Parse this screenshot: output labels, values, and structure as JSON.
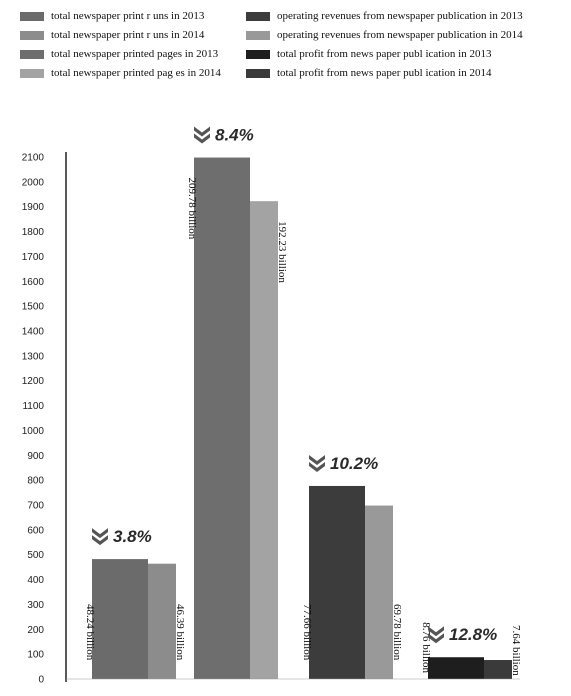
{
  "chart_data": {
    "type": "bar",
    "title": "",
    "xlabel": "",
    "ylabel": "",
    "ylim": [
      0,
      2100
    ],
    "yticks": [
      0,
      100,
      200,
      300,
      400,
      500,
      600,
      700,
      800,
      900,
      1000,
      1100,
      1200,
      1300,
      1400,
      1500,
      1600,
      1700,
      1800,
      1900,
      2000,
      2100
    ],
    "grid": false,
    "legend_position": "top",
    "legend": [
      {
        "label": "total newspaper print r uns in 2013",
        "color": "#6b6b6b"
      },
      {
        "label": "total newspaper print r uns in 2014",
        "color": "#8c8c8c"
      },
      {
        "label": "total newspaper printed pages in 2013",
        "color": "#6e6e6e"
      },
      {
        "label": "total newspaper printed pag es in 2014",
        "color": "#a3a3a3"
      },
      {
        "label": "operating revenues from newspaper publication in 2013",
        "color": "#3c3c3c"
      },
      {
        "label": "operating revenues from newspaper publication in 2014",
        "color": "#999999"
      },
      {
        "label": "total profit from news paper publ ication in 2013",
        "color": "#1e1e1e"
      },
      {
        "label": "total profit from news paper publ ication in 2014",
        "color": "#3a3a3a"
      }
    ],
    "groups": [
      {
        "change_label": "3.8%",
        "bars": [
          {
            "series": "total newspaper print r uns in 2013",
            "value": 482.4,
            "label": "48.24 billion",
            "color": "#6b6b6b"
          },
          {
            "series": "total newspaper print r uns in 2014",
            "value": 463.9,
            "label": "46.39 billion",
            "color": "#8c8c8c"
          }
        ]
      },
      {
        "change_label": "8.4%",
        "bars": [
          {
            "series": "total newspaper printed pages in 2013",
            "value": 2097.8,
            "label": "209.78 billion",
            "color": "#6e6e6e"
          },
          {
            "series": "total newspaper printed pag es in 2014",
            "value": 1922.3,
            "label": "192.23 billion",
            "color": "#a3a3a3"
          }
        ]
      },
      {
        "change_label": "10.2%",
        "bars": [
          {
            "series": "operating revenues from newspaper publication in 2013",
            "value": 776.6,
            "label": "77.66 billion",
            "color": "#3c3c3c"
          },
          {
            "series": "operating revenues from newspaper publication in 2014",
            "value": 697.8,
            "label": "69.78 billion",
            "color": "#999999"
          }
        ]
      },
      {
        "change_label": "12.8%",
        "bars": [
          {
            "series": "total profit from news paper publ ication in 2013",
            "value": 87.6,
            "label": "8.76 billion",
            "color": "#1e1e1e"
          },
          {
            "series": "total profit from news paper publ ication in 2014",
            "value": 76.4,
            "label": "7.64 billion",
            "color": "#3a3a3a"
          }
        ]
      }
    ]
  }
}
